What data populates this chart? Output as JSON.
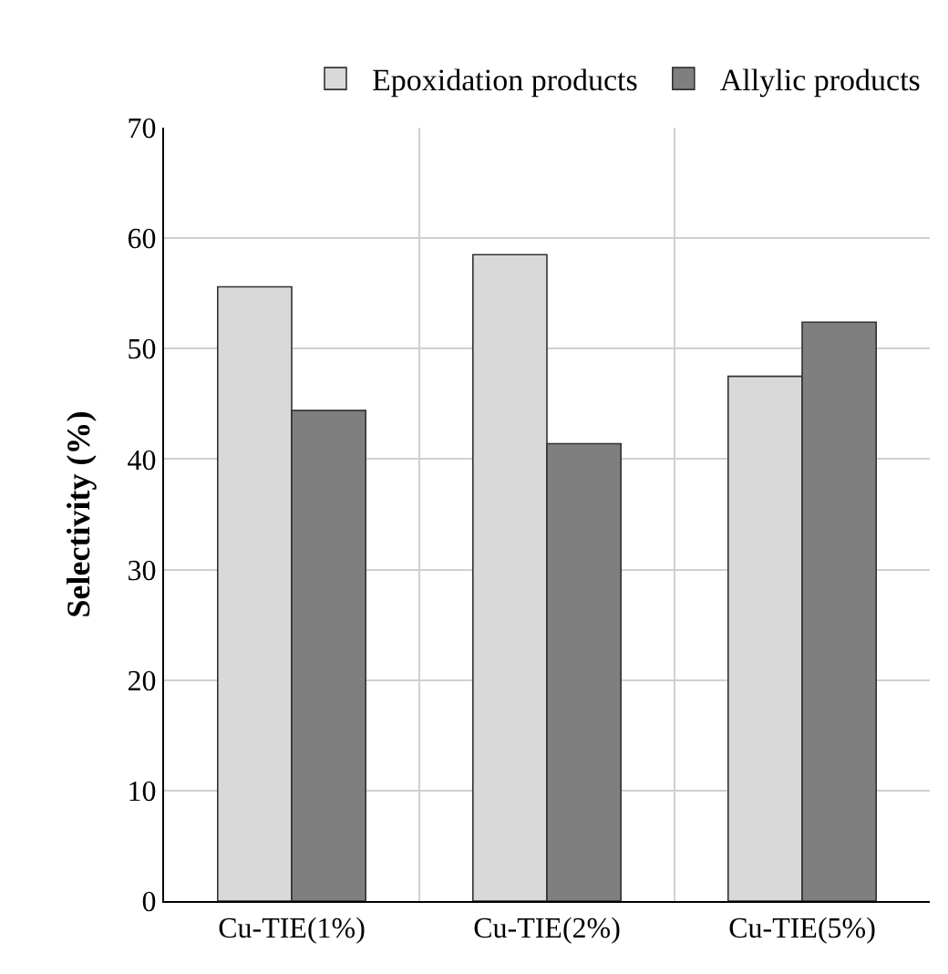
{
  "chart_data": {
    "type": "bar",
    "ylabel": "Selectivity (%)",
    "categories": [
      "Cu-TIE(1%)",
      "Cu-TIE(2%)",
      "Cu-TIE(5%)"
    ],
    "series": [
      {
        "name": "Epoxidation products",
        "color": "#d9d9d9",
        "values": [
          55.6,
          58.5,
          47.5
        ]
      },
      {
        "name": "Allylic products",
        "color": "#7f7f7f",
        "values": [
          44.4,
          41.4,
          52.4
        ]
      }
    ],
    "ylim": [
      0,
      70
    ],
    "yticks": [
      0,
      10,
      20,
      30,
      40,
      50,
      60,
      70
    ],
    "grid": true,
    "legend": "top"
  }
}
